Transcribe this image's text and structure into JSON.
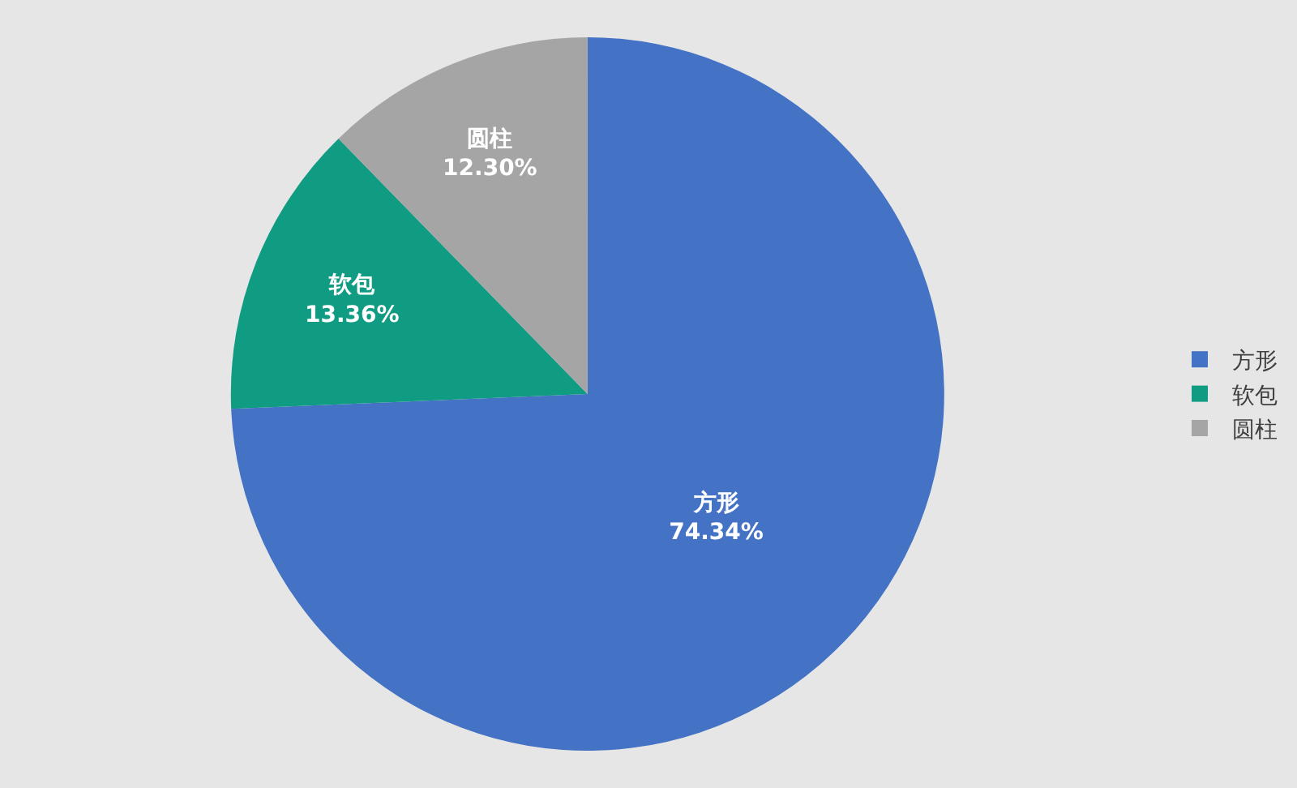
{
  "chart_data": {
    "type": "pie",
    "categories": [
      "方形",
      "软包",
      "圆柱"
    ],
    "values": [
      74.34,
      13.36,
      12.3
    ],
    "value_labels": [
      "74.34%",
      "13.36%",
      "12.30%"
    ],
    "colors": [
      "#4472c4",
      "#109c83",
      "#a5a5a5"
    ],
    "legend": "right"
  }
}
